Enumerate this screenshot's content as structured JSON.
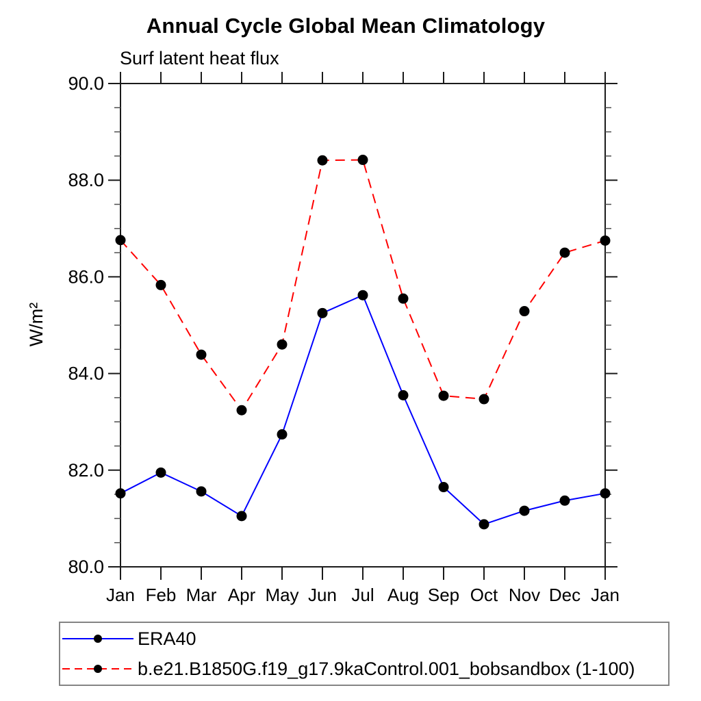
{
  "chart_data": {
    "type": "line",
    "title": "Annual Cycle Global Mean Climatology",
    "subtitle": "Surf latent heat flux",
    "ylabel": "W/m²",
    "xlabel": "",
    "x_tick_labels": [
      "Jan",
      "Feb",
      "Mar",
      "Apr",
      "May",
      "Jun",
      "Jul",
      "Aug",
      "Sep",
      "Oct",
      "Nov",
      "Dec",
      "Jan"
    ],
    "ylim": [
      80.0,
      90.0
    ],
    "y_major_ticks": [
      80.0,
      82.0,
      84.0,
      86.0,
      88.0,
      90.0
    ],
    "y_major_tick_labels": [
      "80.0",
      "82.0",
      "84.0",
      "86.0",
      "88.0",
      "90.0"
    ],
    "y_minor_step": 0.5,
    "grid": false,
    "legend_position": "bottom-left-box",
    "series": [
      {
        "name": "ERA40",
        "line_style": "solid",
        "color": "#0000ff",
        "marker": "filled-circle",
        "marker_color": "#000000",
        "values": [
          81.52,
          81.95,
          81.56,
          81.05,
          82.74,
          85.25,
          85.62,
          83.55,
          81.65,
          80.88,
          81.16,
          81.37,
          81.52
        ]
      },
      {
        "name": "b.e21.B1850G.f19_g17.9kaControl.001_bobsandbox (1-100)",
        "line_style": "dashed",
        "color": "#ff0000",
        "marker": "filled-circle",
        "marker_color": "#000000",
        "values": [
          86.76,
          85.83,
          84.39,
          83.24,
          84.6,
          88.41,
          88.42,
          85.55,
          83.54,
          83.47,
          85.29,
          86.5,
          86.75
        ]
      }
    ],
    "colors": {
      "axis": "#1a1a1a",
      "minor_tick": "#4d4d4d",
      "text": "#000000",
      "legend_border": "#848484",
      "background": "#ffffff"
    }
  }
}
